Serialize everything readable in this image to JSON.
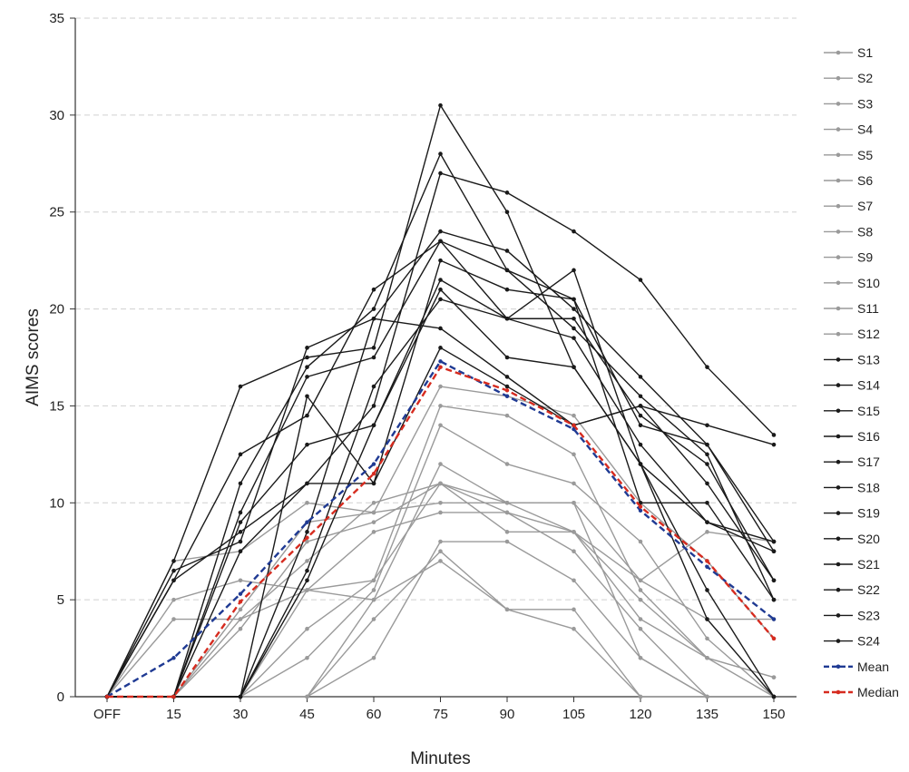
{
  "chart_data": {
    "type": "line",
    "xlabel": "Minutes",
    "ylabel": "AIMS scores",
    "categories": [
      "OFF",
      "15",
      "30",
      "45",
      "60",
      "75",
      "90",
      "105",
      "120",
      "135",
      "150"
    ],
    "ylim": [
      0,
      35
    ],
    "yticks": [
      0,
      5,
      10,
      15,
      20,
      25,
      30,
      35
    ],
    "grid": "horizontal dashed",
    "legend_position": "right",
    "colors": {
      "gray_series": "#9a9a9a",
      "black_series": "#1a1a1a",
      "mean": "#1f3a93",
      "median": "#d62b1f",
      "grid": "#d0d0d0"
    },
    "series": [
      {
        "name": "S1",
        "group": "gray",
        "values": [
          0,
          4,
          4,
          5.5,
          6,
          15,
          14.5,
          12.5,
          5.5,
          2,
          1
        ]
      },
      {
        "name": "S2",
        "group": "gray",
        "values": [
          0,
          5,
          6,
          5.5,
          5,
          12,
          10,
          10,
          2,
          0,
          0
        ]
      },
      {
        "name": "S3",
        "group": "gray",
        "values": [
          0,
          7,
          7.5,
          10,
          9.5,
          10,
          10,
          10,
          6,
          8.5,
          8
        ]
      },
      {
        "name": "S4",
        "group": "gray",
        "values": [
          0,
          0,
          0,
          2,
          5.5,
          14,
          12,
          11,
          8,
          3,
          0
        ]
      },
      {
        "name": "S5",
        "group": "gray",
        "values": [
          0,
          0,
          0,
          0,
          2,
          8,
          8,
          6,
          2,
          0,
          0
        ]
      },
      {
        "name": "S6",
        "group": "gray",
        "values": [
          0,
          0,
          0,
          0,
          4,
          7.5,
          4.5,
          4.5,
          0,
          0,
          0
        ]
      },
      {
        "name": "S7",
        "group": "gray",
        "values": [
          0,
          0,
          0,
          0,
          5,
          7,
          4.5,
          3.5,
          0,
          0,
          0
        ]
      },
      {
        "name": "S8",
        "group": "gray",
        "values": [
          0,
          0,
          0,
          3.5,
          6,
          11,
          9.5,
          8.5,
          4,
          2,
          1
        ]
      },
      {
        "name": "S9",
        "group": "gray",
        "values": [
          0,
          0,
          0,
          5.5,
          8.5,
          9.5,
          9.5,
          7.5,
          3.5,
          0,
          0
        ]
      },
      {
        "name": "S10",
        "group": "gray",
        "values": [
          0,
          0,
          4,
          7,
          10,
          11,
          10,
          8.5,
          6,
          4,
          4
        ]
      },
      {
        "name": "S11",
        "group": "gray",
        "values": [
          0,
          0,
          3.5,
          8,
          9,
          11,
          8.5,
          8.5,
          5,
          2,
          0
        ]
      },
      {
        "name": "S12",
        "group": "gray",
        "values": [
          0,
          0,
          4.5,
          9,
          9.5,
          16,
          15.5,
          14.5,
          10,
          7,
          3
        ]
      },
      {
        "name": "S13",
        "group": "black",
        "values": [
          0,
          7,
          16,
          17.5,
          18,
          30.5,
          25,
          17,
          12,
          9,
          8
        ]
      },
      {
        "name": "S14",
        "group": "black",
        "values": [
          0,
          6,
          12.5,
          14.5,
          21,
          23.5,
          19.5,
          19.5,
          14.5,
          12,
          6
        ]
      },
      {
        "name": "S15",
        "group": "black",
        "values": [
          0,
          6.5,
          8,
          18,
          19.5,
          24,
          23,
          20,
          16.5,
          13,
          8
        ]
      },
      {
        "name": "S16",
        "group": "black",
        "values": [
          0,
          6,
          8.5,
          11,
          15,
          27,
          26,
          24,
          21.5,
          17,
          13.5
        ]
      },
      {
        "name": "S17",
        "group": "black",
        "values": [
          0,
          0,
          11,
          17,
          20,
          28,
          22,
          20.5,
          14,
          13,
          7.5
        ]
      },
      {
        "name": "S18",
        "group": "black",
        "values": [
          0,
          0,
          9.5,
          16.5,
          17.5,
          23.5,
          22,
          19,
          15.5,
          12.5,
          5
        ]
      },
      {
        "name": "S19",
        "group": "black",
        "values": [
          0,
          0,
          7.5,
          11,
          11,
          22.5,
          21,
          20.5,
          10,
          10,
          5
        ]
      },
      {
        "name": "S20",
        "group": "black",
        "values": [
          0,
          0,
          9,
          13,
          14,
          21,
          17.5,
          17,
          12,
          5.5,
          0
        ]
      },
      {
        "name": "S21",
        "group": "black",
        "values": [
          0,
          0,
          0,
          6,
          14,
          21.5,
          19.5,
          18.5,
          13,
          9,
          7.5
        ]
      },
      {
        "name": "S22",
        "group": "black",
        "values": [
          0,
          0,
          0,
          6.5,
          16,
          20.5,
          19.5,
          22,
          12,
          4,
          0
        ]
      },
      {
        "name": "S23",
        "group": "black",
        "values": [
          0,
          0,
          0,
          8.5,
          19.5,
          19,
          16.5,
          14,
          15,
          11,
          6
        ]
      },
      {
        "name": "S24",
        "group": "black",
        "values": [
          0,
          0,
          0,
          15.5,
          11,
          18,
          16,
          14,
          15,
          14,
          13
        ]
      },
      {
        "name": "Mean",
        "group": "mean",
        "dashed": true,
        "values": [
          0,
          2,
          5.3,
          9,
          12,
          17.3,
          15.5,
          13.8,
          9.6,
          6.7,
          4
        ]
      },
      {
        "name": "Median",
        "group": "median",
        "dashed": true,
        "values": [
          0,
          0,
          4.9,
          8.2,
          11.5,
          17,
          15.8,
          14,
          9.8,
          7,
          3
        ]
      }
    ]
  }
}
